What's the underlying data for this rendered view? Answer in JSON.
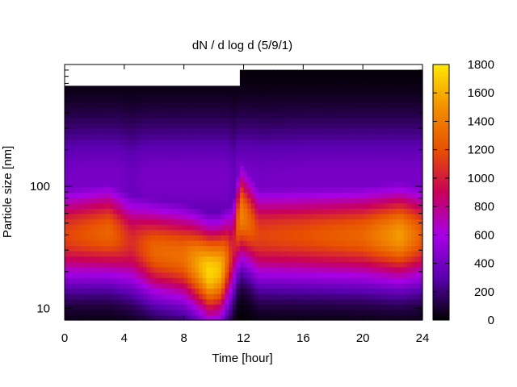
{
  "chart_data": {
    "type": "heatmap",
    "title": "dN / d log d (5/9/1)",
    "xlabel": "Time [hour]",
    "ylabel": "Particle size [nm]",
    "xlim": [
      0,
      24
    ],
    "ylim": [
      8,
      1000
    ],
    "y_scale": "log",
    "x_ticks": [
      0,
      4,
      8,
      12,
      16,
      20,
      24
    ],
    "y_tick_labels": [
      10,
      100
    ],
    "colorbar": {
      "range": [
        0,
        1800
      ],
      "ticks": [
        0,
        200,
        400,
        600,
        800,
        1000,
        1200,
        1400,
        1600,
        1800
      ],
      "colormap": [
        "#000000",
        "#5a00b0",
        "#a800e6",
        "#c8005a",
        "#e85000",
        "#f29000",
        "#ffe800"
      ]
    },
    "profiles": [
      {
        "hour": 0,
        "peak_nm": 40,
        "peak_value": 1150
      },
      {
        "hour": 3,
        "peak_nm": 42,
        "peak_value": 1300
      },
      {
        "hour": 4.5,
        "peak_nm": 35,
        "peak_value": 1050
      },
      {
        "hour": 6,
        "peak_nm": 30,
        "peak_value": 1300
      },
      {
        "hour": 8,
        "peak_nm": 27,
        "peak_value": 1350
      },
      {
        "hour": 9.7,
        "peak_nm": 20,
        "peak_value": 1750
      },
      {
        "hour": 10.5,
        "peak_nm": 21,
        "peak_value": 1650
      },
      {
        "hour": 11.3,
        "peak_nm": 30,
        "peak_value": 950
      },
      {
        "hour": 11.8,
        "peak_nm": 60,
        "peak_value": 1450
      },
      {
        "hour": 13,
        "peak_nm": 40,
        "peak_value": 1150
      },
      {
        "hour": 16,
        "peak_nm": 40,
        "peak_value": 1200
      },
      {
        "hour": 20,
        "peak_nm": 40,
        "peak_value": 1300
      },
      {
        "hour": 22.5,
        "peak_nm": 40,
        "peak_value": 1550
      },
      {
        "hour": 24,
        "peak_nm": 40,
        "peak_value": 1250
      }
    ]
  }
}
